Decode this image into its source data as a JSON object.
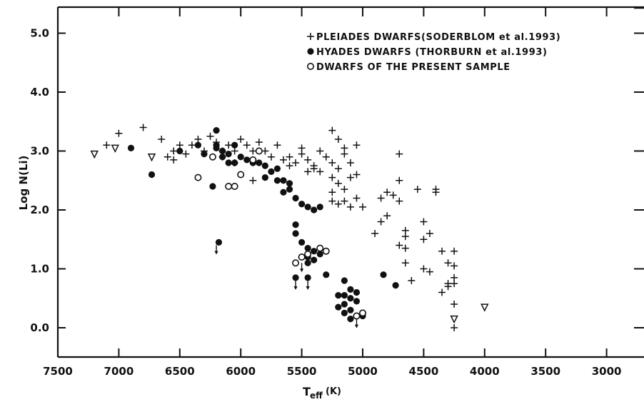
{
  "chart_data": {
    "type": "scatter",
    "title": "",
    "xlabel": "T",
    "xlabel_sub": "eff",
    "xlabel_unit": "(K)",
    "ylabel": "Log N(Li)",
    "xlim": [
      7500,
      2700
    ],
    "ylim": [
      -0.5,
      5.5
    ],
    "x_reversed": true,
    "x_ticks": [
      7500,
      7000,
      6500,
      6000,
      5500,
      5000,
      4500,
      4000,
      3500,
      3000
    ],
    "x_tick_labels": [
      "7500",
      "7000",
      "6500",
      "6000",
      "5500",
      "5000",
      "4500",
      "4000",
      "3500",
      "3000"
    ],
    "y_ticks": [
      0,
      1,
      2,
      3,
      4,
      5
    ],
    "y_tick_labels": [
      "0.0",
      "1.0",
      "2.0",
      "3.0",
      "4.0",
      "5.0"
    ],
    "grid": false,
    "legend_position": "top-right",
    "legend": [
      {
        "marker": "plus",
        "label": "PLEIADES DWARFS(SODERBLOM et al.1993)"
      },
      {
        "marker": "filled-circle",
        "label": "HYADES DWARFS (THORBURN et al.1993)"
      },
      {
        "marker": "open-circle",
        "label": "DWARFS OF THE PRESENT SAMPLE"
      }
    ],
    "series": [
      {
        "name": "PLEIADES DWARFS(SODERBLOM et al.1993)",
        "marker": "plus",
        "points": [
          [
            7000,
            3.3
          ],
          [
            6800,
            3.4
          ],
          [
            7100,
            3.1
          ],
          [
            6650,
            3.2
          ],
          [
            6600,
            2.9
          ],
          [
            6550,
            3.0
          ],
          [
            6500,
            3.1
          ],
          [
            6450,
            2.95
          ],
          [
            6400,
            3.1
          ],
          [
            6350,
            3.2
          ],
          [
            6300,
            3.0
          ],
          [
            6250,
            3.25
          ],
          [
            6200,
            3.15
          ],
          [
            6150,
            3.0
          ],
          [
            6100,
            3.1
          ],
          [
            6050,
            3.0
          ],
          [
            6000,
            3.2
          ],
          [
            5950,
            3.1
          ],
          [
            5900,
            3.0
          ],
          [
            5850,
            3.15
          ],
          [
            5800,
            3.0
          ],
          [
            5750,
            2.9
          ],
          [
            5700,
            3.1
          ],
          [
            5650,
            2.85
          ],
          [
            5600,
            2.9
          ],
          [
            5550,
            2.8
          ],
          [
            5500,
            3.05
          ],
          [
            5450,
            2.85
          ],
          [
            5400,
            2.75
          ],
          [
            5350,
            3.0
          ],
          [
            5300,
            2.9
          ],
          [
            5250,
            2.8
          ],
          [
            5200,
            2.7
          ],
          [
            5150,
            2.95
          ],
          [
            5100,
            2.8
          ],
          [
            5050,
            3.1
          ],
          [
            5250,
            3.35
          ],
          [
            5200,
            3.2
          ],
          [
            5150,
            3.05
          ],
          [
            5350,
            2.65
          ],
          [
            5250,
            2.55
          ],
          [
            5200,
            2.45
          ],
          [
            5150,
            2.35
          ],
          [
            5100,
            2.55
          ],
          [
            5050,
            2.6
          ],
          [
            5250,
            2.3
          ],
          [
            5200,
            2.1
          ],
          [
            5150,
            2.15
          ],
          [
            5100,
            2.05
          ],
          [
            5050,
            2.2
          ],
          [
            5000,
            2.05
          ],
          [
            5250,
            2.15
          ],
          [
            4900,
            1.6
          ],
          [
            4850,
            1.8
          ],
          [
            4800,
            1.9
          ],
          [
            4850,
            2.2
          ],
          [
            4800,
            2.3
          ],
          [
            4750,
            2.25
          ],
          [
            4700,
            2.15
          ],
          [
            4700,
            2.5
          ],
          [
            4700,
            2.95
          ],
          [
            4650,
            1.65
          ],
          [
            4650,
            1.55
          ],
          [
            4700,
            1.4
          ],
          [
            4650,
            1.35
          ],
          [
            4650,
            1.1
          ],
          [
            4600,
            0.8
          ],
          [
            4550,
            2.35
          ],
          [
            4500,
            1.8
          ],
          [
            4500,
            1.5
          ],
          [
            4450,
            1.6
          ],
          [
            4500,
            1.0
          ],
          [
            4450,
            0.95
          ],
          [
            4400,
            2.35
          ],
          [
            4400,
            2.3
          ],
          [
            4350,
            1.3
          ],
          [
            4300,
            1.1
          ],
          [
            4350,
            0.6
          ],
          [
            4300,
            0.7
          ],
          [
            4250,
            1.3
          ],
          [
            4250,
            1.05
          ],
          [
            4250,
            0.85
          ],
          [
            4250,
            0.4
          ],
          [
            4250,
            0.0
          ],
          [
            4300,
            0.75
          ],
          [
            4250,
            0.75
          ],
          [
            6150,
            2.9
          ],
          [
            6050,
            2.8
          ],
          [
            5900,
            2.5
          ],
          [
            5600,
            2.75
          ],
          [
            5500,
            2.95
          ],
          [
            5450,
            2.65
          ],
          [
            5400,
            2.7
          ],
          [
            6550,
            2.85
          ]
        ]
      },
      {
        "name": "HYADES DWARFS (THORBURN et al.1993)",
        "marker": "filled-circle",
        "points": [
          [
            6730,
            2.6
          ],
          [
            6500,
            3.0
          ],
          [
            6350,
            3.1
          ],
          [
            6300,
            2.95
          ],
          [
            6200,
            3.35
          ],
          [
            6200,
            3.1
          ],
          [
            6150,
            3.0
          ],
          [
            6100,
            2.95
          ],
          [
            6100,
            2.8
          ],
          [
            6050,
            3.1
          ],
          [
            6000,
            2.9
          ],
          [
            5950,
            2.85
          ],
          [
            5900,
            2.8
          ],
          [
            5850,
            2.8
          ],
          [
            5800,
            2.75
          ],
          [
            5750,
            2.65
          ],
          [
            5700,
            2.7
          ],
          [
            5650,
            2.5
          ],
          [
            5600,
            2.45
          ],
          [
            5600,
            2.35
          ],
          [
            5550,
            2.2
          ],
          [
            5500,
            2.1
          ],
          [
            5450,
            2.05
          ],
          [
            5400,
            2.0
          ],
          [
            5350,
            2.05
          ],
          [
            6230,
            2.4
          ],
          [
            6200,
            3.05
          ],
          [
            6150,
            2.9
          ],
          [
            6050,
            2.8
          ],
          [
            6000,
            2.6
          ],
          [
            5800,
            2.55
          ],
          [
            5700,
            2.5
          ],
          [
            5650,
            2.3
          ],
          [
            5550,
            1.75
          ],
          [
            5550,
            1.6
          ],
          [
            5500,
            1.45
          ],
          [
            5450,
            1.35
          ],
          [
            5450,
            1.2
          ],
          [
            5400,
            1.3
          ],
          [
            5400,
            1.15
          ],
          [
            5350,
            1.25
          ],
          [
            5300,
            0.9
          ],
          [
            5450,
            1.1
          ],
          [
            5500,
            1.2
          ],
          [
            5200,
            0.55
          ],
          [
            5150,
            0.55
          ],
          [
            5100,
            0.5
          ],
          [
            5100,
            0.65
          ],
          [
            5050,
            0.45
          ],
          [
            5150,
            0.4
          ],
          [
            5200,
            0.35
          ],
          [
            5150,
            0.25
          ],
          [
            5100,
            0.3
          ],
          [
            5050,
            0.2
          ],
          [
            5100,
            0.15
          ],
          [
            5000,
            0.2
          ],
          [
            5050,
            0.6
          ],
          [
            5150,
            0.8
          ],
          [
            4830,
            0.9
          ],
          [
            4730,
            0.72
          ],
          [
            6180,
            1.45
          ],
          [
            5550,
            0.85
          ],
          [
            5450,
            0.85
          ],
          [
            6900,
            3.05
          ]
        ]
      },
      {
        "name": "DWARFS OF THE PRESENT SAMPLE",
        "marker": "open-circle",
        "points": [
          [
            6350,
            2.55
          ],
          [
            6230,
            2.9
          ],
          [
            6100,
            2.4
          ],
          [
            6050,
            2.4
          ],
          [
            6000,
            2.6
          ],
          [
            5900,
            2.85
          ],
          [
            5850,
            3.0
          ],
          [
            5550,
            1.1
          ],
          [
            5500,
            1.2
          ],
          [
            5450,
            1.25
          ],
          [
            5350,
            1.35
          ],
          [
            5300,
            1.3
          ],
          [
            5000,
            0.25
          ],
          [
            5050,
            0.2
          ]
        ]
      },
      {
        "name": "",
        "marker": "open-triangle",
        "points": [
          [
            7200,
            2.95
          ],
          [
            7030,
            3.05
          ],
          [
            6730,
            2.9
          ],
          [
            4000,
            0.35
          ],
          [
            4250,
            0.15
          ]
        ]
      },
      {
        "name": "",
        "marker": "upper-limit-arrow",
        "points": [
          [
            6200,
            1.4
          ],
          [
            5550,
            0.8
          ],
          [
            5450,
            0.8
          ],
          [
            5050,
            0.15
          ],
          [
            5500,
            1.1
          ]
        ]
      }
    ]
  }
}
